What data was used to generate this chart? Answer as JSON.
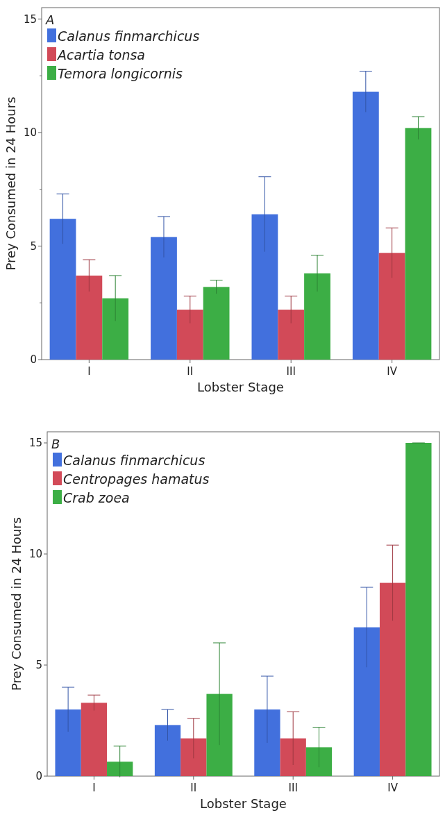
{
  "chart_data": [
    {
      "type": "bar",
      "categories": [
        "I",
        "II",
        "III",
        "IV"
      ],
      "xlabel": "Lobster Stage",
      "ylabel": "Prey Consumed in 24 Hours",
      "annotations": [
        "A"
      ],
      "ylim": [
        0,
        15.5
      ],
      "yticks": [
        0,
        {
          "value": 2.5,
          "label": null
        },
        5,
        {
          "value": 7.5,
          "label": null
        },
        10,
        {
          "value": 12.5,
          "label": null
        },
        15
      ],
      "legend": "top left",
      "grid": false,
      "series": [
        {
          "name": "Calanus finmarchicus",
          "color": "#4270dd",
          "values": [
            6.2,
            5.4,
            6.4,
            11.8
          ],
          "errors": [
            1.1,
            0.9,
            1.65,
            0.9
          ]
        },
        {
          "name": "Acartia tonsa",
          "color": "#d24a58",
          "values": [
            3.7,
            2.2,
            2.2,
            4.7
          ],
          "errors": [
            0.7,
            0.6,
            0.6,
            1.1
          ]
        },
        {
          "name": "Temora longicornis",
          "color": "#3cae45",
          "values": [
            2.7,
            3.2,
            3.8,
            10.2
          ],
          "errors": [
            1.0,
            0.3,
            0.8,
            0.5
          ]
        }
      ]
    },
    {
      "type": "bar",
      "categories": [
        "I",
        "II",
        "III",
        "IV"
      ],
      "xlabel": "Lobster Stage",
      "ylabel": "Prey Consumed in 24 Hours",
      "annotations": [
        "B"
      ],
      "ylim": [
        0,
        15.5
      ],
      "yticks": [
        0,
        5,
        10,
        15
      ],
      "legend": "top left",
      "grid": false,
      "series": [
        {
          "name": "Calanus finmarchicus",
          "color": "#4270dd",
          "values": [
            3.0,
            2.3,
            3.0,
            6.7
          ],
          "errors": [
            1.0,
            0.7,
            1.5,
            1.8
          ]
        },
        {
          "name": "Centropages hamatus",
          "color": "#d24a58",
          "values": [
            3.3,
            1.7,
            1.7,
            8.7
          ],
          "errors": [
            0.35,
            0.9,
            1.2,
            1.7
          ]
        },
        {
          "name": "Crab zoea",
          "color": "#3cae45",
          "values": [
            0.65,
            3.7,
            1.3,
            15.0
          ],
          "errors": [
            0.7,
            2.3,
            0.9,
            0
          ]
        }
      ]
    }
  ]
}
